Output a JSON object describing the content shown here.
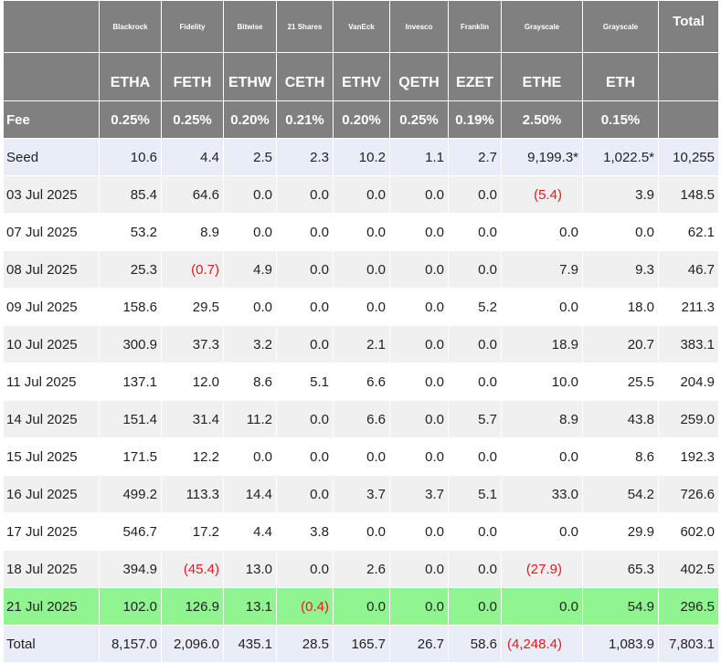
{
  "table": {
    "issuers": [
      "Blackrock",
      "Fidelity",
      "Bitwise",
      "21 Shares",
      "VanEck",
      "Invesco",
      "Franklin",
      "Grayscale",
      "Grayscale"
    ],
    "total_label": "Total",
    "tickers": [
      "ETHA",
      "FETH",
      "ETHW",
      "CETH",
      "ETHV",
      "QETH",
      "EZET",
      "ETHE",
      "ETH"
    ],
    "fee_label": "Fee",
    "fees": [
      "0.25%",
      "0.25%",
      "0.20%",
      "0.21%",
      "0.20%",
      "0.25%",
      "0.19%",
      "2.50%",
      "0.15%"
    ],
    "rows": [
      {
        "date": "Seed",
        "values": [
          "10.6",
          "4.4",
          "2.5",
          "2.3",
          "10.2",
          "1.1",
          "2.7",
          "9,199.3*",
          "1,022.5*",
          "10,255"
        ]
      },
      {
        "date": "03 Jul 2025",
        "values": [
          "85.4",
          "64.6",
          "0.0",
          "0.0",
          "0.0",
          "0.0",
          "0.0",
          "(5.4)",
          "3.9",
          "148.5"
        ]
      },
      {
        "date": "07 Jul 2025",
        "values": [
          "53.2",
          "8.9",
          "0.0",
          "0.0",
          "0.0",
          "0.0",
          "0.0",
          "0.0",
          "0.0",
          "62.1"
        ]
      },
      {
        "date": "08 Jul 2025",
        "values": [
          "25.3",
          "(0.7)",
          "4.9",
          "0.0",
          "0.0",
          "0.0",
          "0.0",
          "7.9",
          "9.3",
          "46.7"
        ]
      },
      {
        "date": "09 Jul 2025",
        "values": [
          "158.6",
          "29.5",
          "0.0",
          "0.0",
          "0.0",
          "0.0",
          "5.2",
          "0.0",
          "18.0",
          "211.3"
        ]
      },
      {
        "date": "10 Jul 2025",
        "values": [
          "300.9",
          "37.3",
          "3.2",
          "0.0",
          "2.1",
          "0.0",
          "0.0",
          "18.9",
          "20.7",
          "383.1"
        ]
      },
      {
        "date": "11 Jul 2025",
        "values": [
          "137.1",
          "12.0",
          "8.6",
          "5.1",
          "6.6",
          "0.0",
          "0.0",
          "10.0",
          "25.5",
          "204.9"
        ]
      },
      {
        "date": "14 Jul 2025",
        "values": [
          "151.4",
          "31.4",
          "11.2",
          "0.0",
          "6.6",
          "0.0",
          "5.7",
          "8.9",
          "43.8",
          "259.0"
        ]
      },
      {
        "date": "15 Jul 2025",
        "values": [
          "171.5",
          "12.2",
          "0.0",
          "0.0",
          "0.0",
          "0.0",
          "0.0",
          "0.0",
          "8.6",
          "192.3"
        ]
      },
      {
        "date": "16 Jul 2025",
        "values": [
          "499.2",
          "113.3",
          "14.4",
          "0.0",
          "3.7",
          "3.7",
          "5.1",
          "33.0",
          "54.2",
          "726.6"
        ]
      },
      {
        "date": "17 Jul 2025",
        "values": [
          "546.7",
          "17.2",
          "4.4",
          "3.8",
          "0.0",
          "0.0",
          "0.0",
          "0.0",
          "29.9",
          "602.0"
        ]
      },
      {
        "date": "18 Jul 2025",
        "values": [
          "394.9",
          "(45.4)",
          "13.0",
          "0.0",
          "2.6",
          "0.0",
          "0.0",
          "(27.9)",
          "65.3",
          "402.5"
        ]
      },
      {
        "date": "21 Jul 2025",
        "values": [
          "102.0",
          "126.9",
          "13.1",
          "(0.4)",
          "0.0",
          "0.0",
          "0.0",
          "0.0",
          "54.9",
          "296.5"
        ]
      },
      {
        "date": "Total",
        "values": [
          "8,157.0",
          "2,096.0",
          "435.1",
          "28.5",
          "165.7",
          "26.7",
          "58.6",
          "(4,248.4)",
          "1,083.9",
          "7,803.1"
        ]
      }
    ]
  },
  "colors": {
    "header_bg": "#808080",
    "seed_row_bg": "#e8edf8",
    "total_row_bg": "#e8edf8",
    "highlight_row_bg": "#90f590",
    "negative_text": "#e41a1c"
  }
}
